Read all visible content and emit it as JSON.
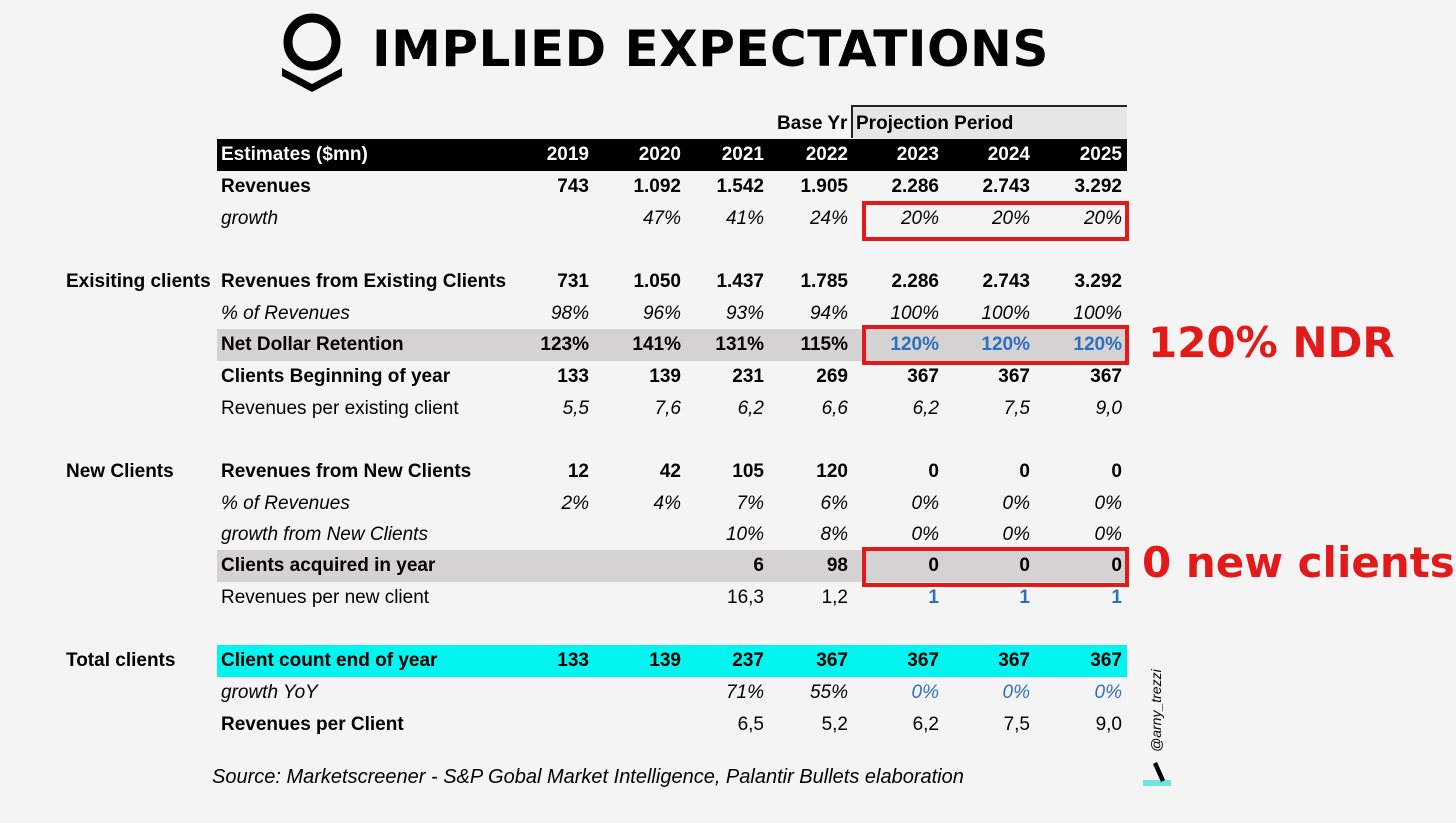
{
  "header": {
    "title": "IMPLIED EXPECTATIONS",
    "logo": "palantir-logo-icon"
  },
  "table": {
    "base_year_label": "Base Yr",
    "projection_label": "Projection Period",
    "header_label": "Estimates ($mn)",
    "years": [
      "2019",
      "2020",
      "2021",
      "2022",
      "2023",
      "2024",
      "2025"
    ],
    "sections": {
      "existing": "Exisiting clients",
      "new": "New Clients",
      "total": "Total clients"
    },
    "rows": {
      "revenues": {
        "label": "Revenues",
        "values": [
          "743",
          "1.092",
          "1.542",
          "1.905",
          "2.286",
          "2.743",
          "3.292"
        ]
      },
      "growth": {
        "label": "growth",
        "values": [
          "",
          "47%",
          "41%",
          "24%",
          "20%",
          "20%",
          "20%"
        ]
      },
      "rev_existing": {
        "label": "Revenues from Existing Clients",
        "values": [
          "731",
          "1.050",
          "1.437",
          "1.785",
          "2.286",
          "2.743",
          "3.292"
        ]
      },
      "pct_existing": {
        "label": "% of Revenues",
        "values": [
          "98%",
          "96%",
          "93%",
          "94%",
          "100%",
          "100%",
          "100%"
        ]
      },
      "ndr": {
        "label": "Net Dollar Retention",
        "values": [
          "123%",
          "141%",
          "131%",
          "115%",
          "120%",
          "120%",
          "120%"
        ]
      },
      "clients_begin": {
        "label": "Clients Beginning of year",
        "values": [
          "133",
          "139",
          "231",
          "269",
          "367",
          "367",
          "367"
        ]
      },
      "rev_per_existing": {
        "label": "Revenues per existing client",
        "values": [
          "5,5",
          "7,6",
          "6,2",
          "6,6",
          "6,2",
          "7,5",
          "9,0"
        ]
      },
      "rev_new": {
        "label": "Revenues from New Clients",
        "values": [
          "12",
          "42",
          "105",
          "120",
          "0",
          "0",
          "0"
        ]
      },
      "pct_new": {
        "label": "% of Revenues",
        "values": [
          "2%",
          "4%",
          "7%",
          "6%",
          "0%",
          "0%",
          "0%"
        ]
      },
      "growth_new": {
        "label": "growth from New Clients",
        "values": [
          "",
          "",
          "10%",
          "8%",
          "0%",
          "0%",
          "0%"
        ]
      },
      "acquired": {
        "label": "Clients acquired in year",
        "values": [
          "",
          "",
          "6",
          "98",
          "0",
          "0",
          "0"
        ]
      },
      "rev_per_new": {
        "label": "Revenues per new client",
        "values": [
          "",
          "",
          "16,3",
          "1,2",
          "1",
          "1",
          "1"
        ]
      },
      "client_count": {
        "label": "Client count end of year",
        "values": [
          "133",
          "139",
          "237",
          "367",
          "367",
          "367",
          "367"
        ]
      },
      "growth_yoy": {
        "label": "growth YoY",
        "values": [
          "",
          "",
          "71%",
          "55%",
          "0%",
          "0%",
          "0%"
        ]
      },
      "rev_per_client": {
        "label": "Revenues per Client",
        "values": [
          "",
          "",
          "6,5",
          "5,2",
          "6,2",
          "7,5",
          "9,0"
        ]
      }
    }
  },
  "callouts": {
    "ndr": "120% NDR",
    "new_clients": "0 new clients"
  },
  "footer": {
    "source": "Source: Marketscreener - S&P Gobal Market Intelligence, Palantir Bullets elaboration",
    "handle": "@arny_trezzi"
  },
  "colors": {
    "accent_red": "#e21a1a",
    "cyan": "#00f5f0",
    "blue_values": "#2f6fbf",
    "grey_row": "#d4d2d2"
  }
}
